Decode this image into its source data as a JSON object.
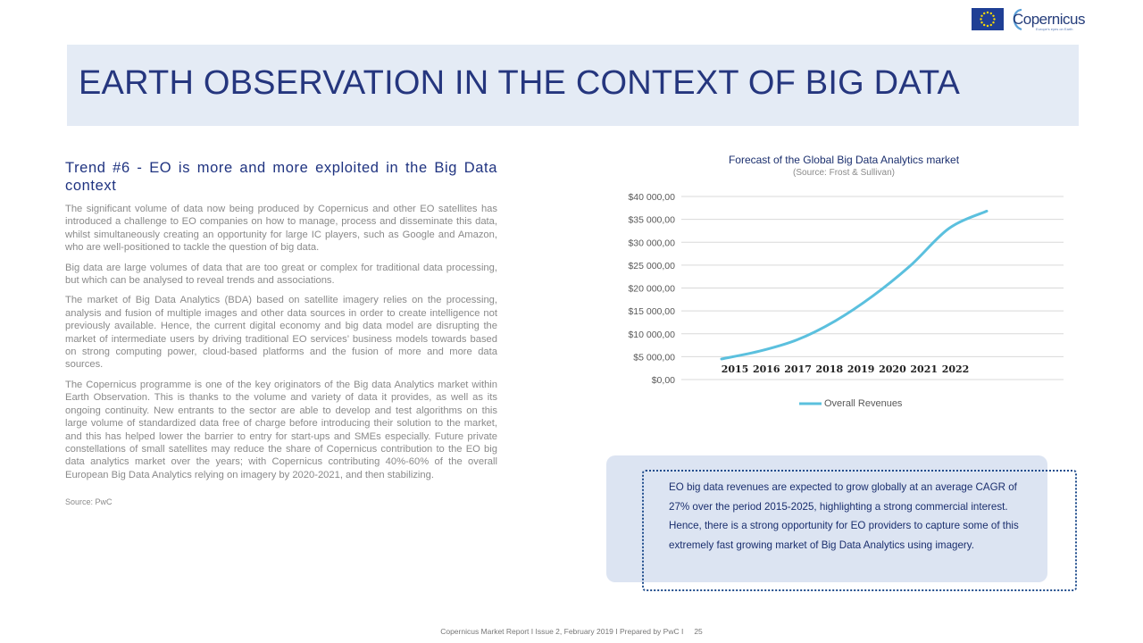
{
  "logo": {
    "text": "Copernicus",
    "tagline": "Europe's eyes on Earth"
  },
  "title": "EARTH OBSERVATION IN THE CONTEXT OF BIG DATA",
  "trend": {
    "heading": "Trend #6 - EO is more and more exploited in the Big Data context",
    "paragraphs": [
      "The significant volume of data now being produced by Copernicus and other EO satellites has introduced a challenge to EO companies on how to manage, process and disseminate this data, whilst simultaneously creating an opportunity for large IC players, such as Google and Amazon, who are well-positioned to tackle the question of big data.",
      "Big data are large volumes of data that are too great or complex for traditional data processing, but which can be analysed to reveal trends and associations.",
      "The market of Big Data Analytics (BDA) based on satellite imagery relies on the processing, analysis and fusion of multiple images and other data sources in order to create intelligence not previously available. Hence, the current digital economy and big data model are disrupting the market of intermediate users by driving traditional EO services’ business models towards based on strong computing power, cloud-based platforms and the fusion of more and more data sources.",
      "The Copernicus programme is one of the key originators of the Big data Analytics market within Earth Observation. This is thanks to the volume and variety of data it provides, as well as its ongoing continuity. New entrants to the sector are able to develop and test algorithms on this large volume of standardized data free of charge before introducing their solution to the market, and this has helped lower the barrier to entry for start-ups and SMEs especially. Future private constellations of small satellites may reduce the share of Copernicus contribution to the EO big data analytics market over the years; with Copernicus contributing 40%-60% of the overall European Big Data Analytics relying on imagery by 2020-2021, and then stabilizing."
    ],
    "source": "Source: PwC"
  },
  "chart_data": {
    "type": "line",
    "title": "Forecast of the Global Big Data Analytics market",
    "subtitle": "(Source: Frost & Sullivan)",
    "x": [
      "2015",
      "2016",
      "2017",
      "2018",
      "2019",
      "2020",
      "2021",
      "2022"
    ],
    "series": [
      {
        "name": "Overall Revenues",
        "color": "#5bc0de",
        "values": [
          4500,
          6200,
          8700,
          12800,
          18300,
          25000,
          33000,
          36800
        ]
      }
    ],
    "ylim": [
      0,
      40000
    ],
    "yticks": [
      0,
      5000,
      10000,
      15000,
      20000,
      25000,
      30000,
      35000,
      40000
    ],
    "ytick_labels": [
      "$0,00",
      "$5 000,00",
      "$10 000,00",
      "$15 000,00",
      "$20 000,00",
      "$25 000,00",
      "$30 000,00",
      "$35 000,00",
      "$40 000,00"
    ],
    "grid": true,
    "legend": "bottom"
  },
  "callout": "EO big data revenues are expected to grow globally at an average CAGR of 27% over the period 2015-2025, highlighting a strong commercial interest. Hence, there is a strong opportunity for EO providers to capture some of this extremely fast growing market of Big Data Analytics using imagery.",
  "footer": {
    "text": "Copernicus Market Report I Issue 2, February 2019 I Prepared by PwC I",
    "page": "25"
  }
}
